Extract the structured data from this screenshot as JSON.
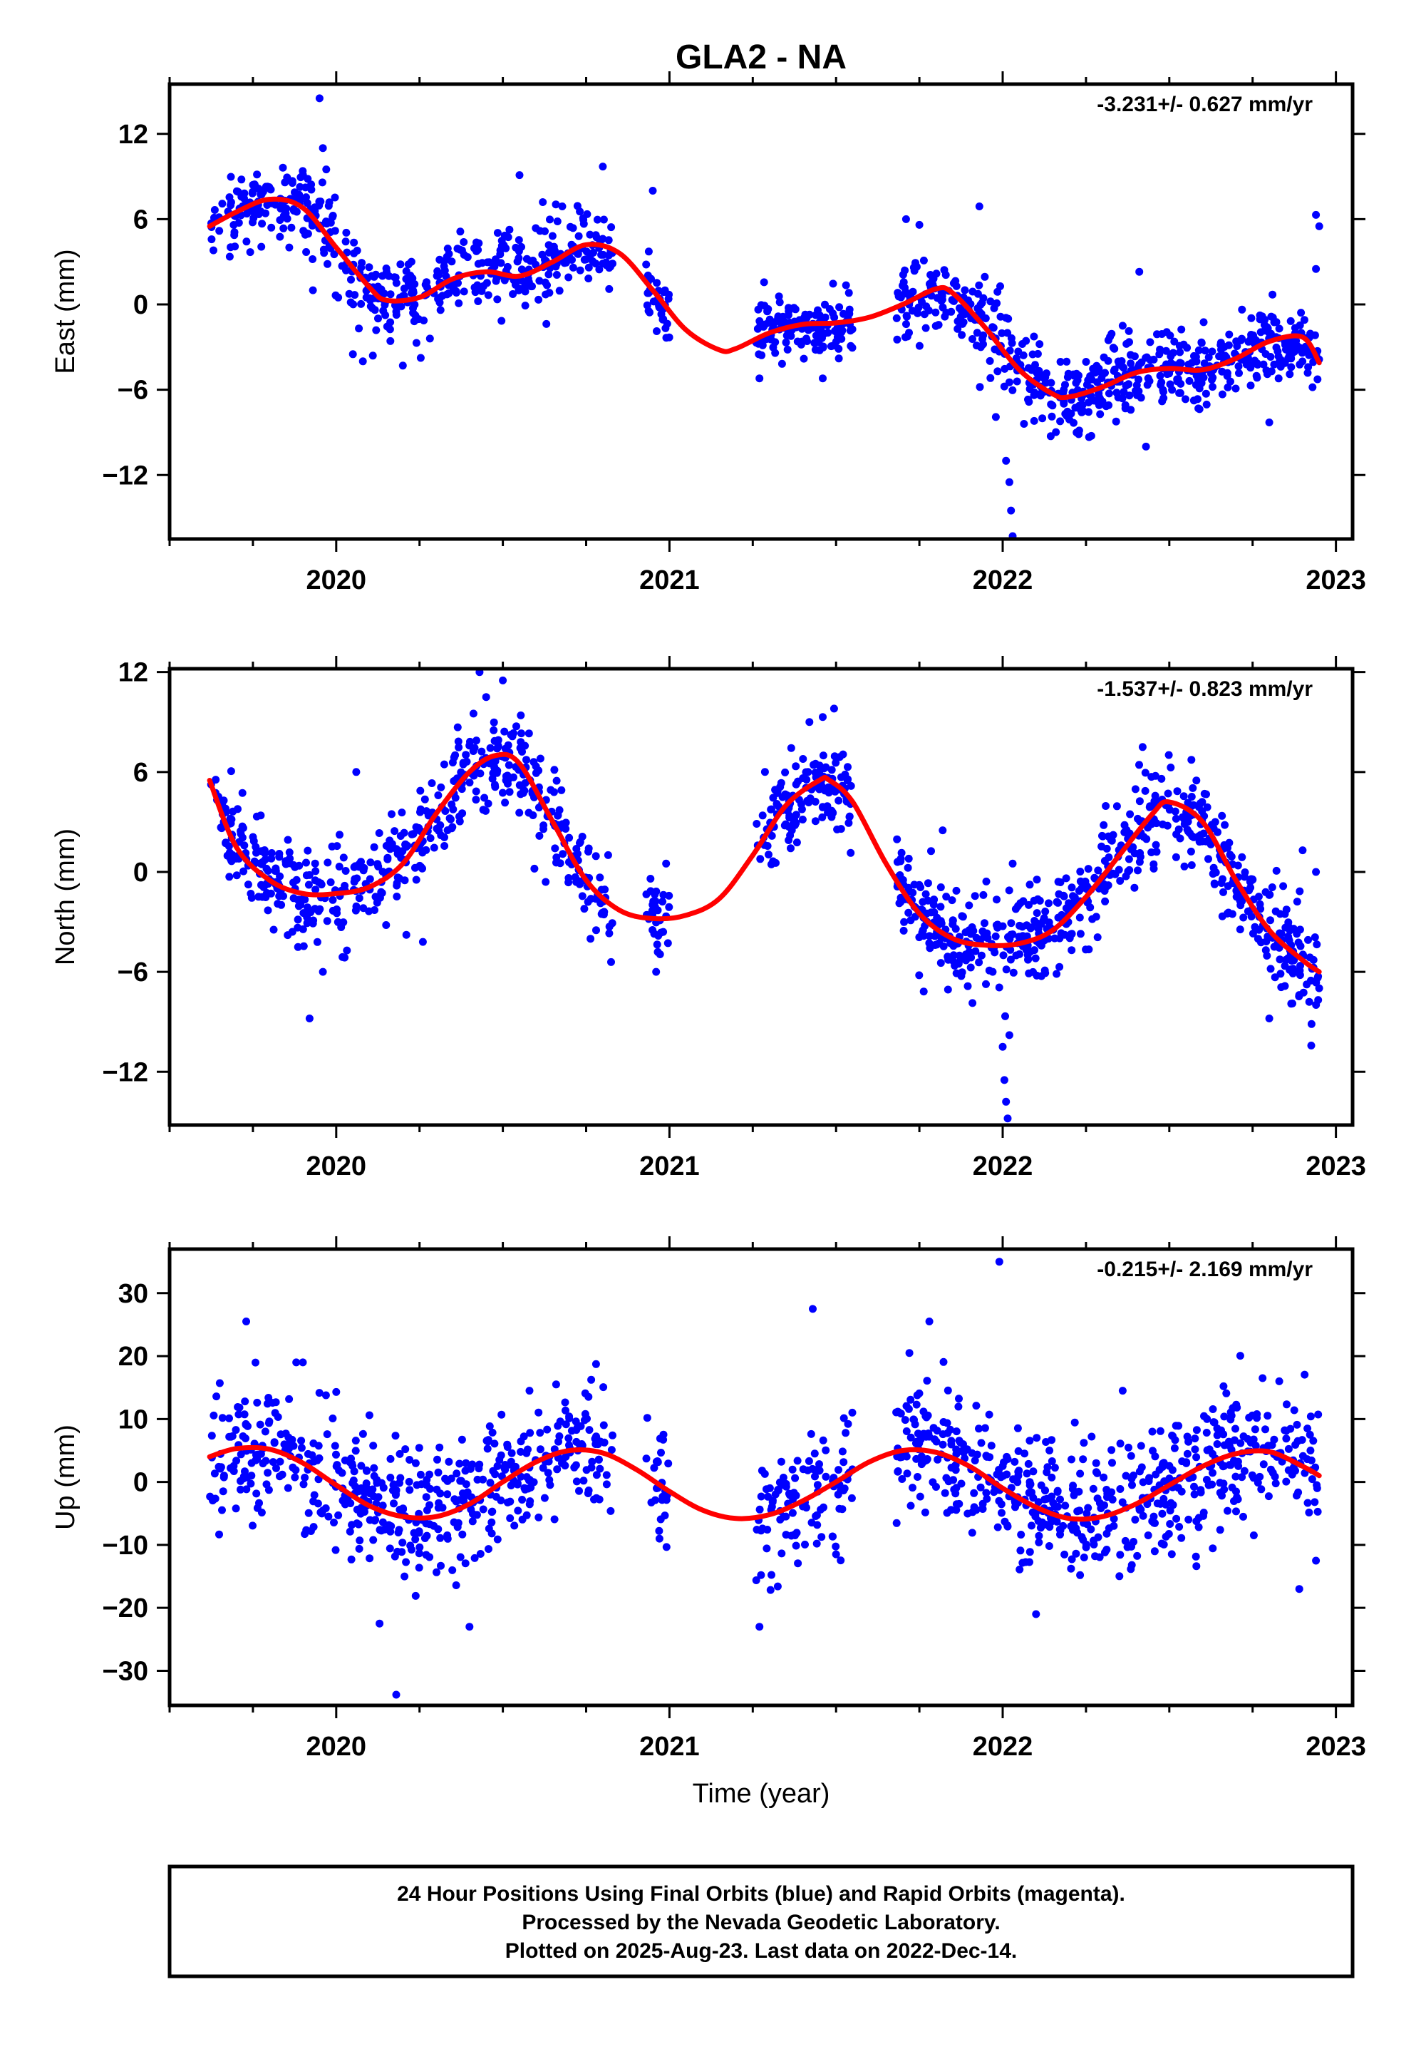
{
  "title": "GLA2 - NA",
  "xlabel": "Time (year)",
  "footer": {
    "line1": "24 Hour Positions Using Final Orbits (blue) and Rapid Orbits (magenta).",
    "line2": "Processed by the Nevada Geodetic Laboratory.",
    "line3": "Plotted on 2025-Aug-23. Last data on 2022-Dec-14."
  },
  "colors": {
    "points": "#0000ff",
    "fit": "#ff0000",
    "frame": "#000000"
  },
  "chart_data": [
    {
      "type": "scatter",
      "ylabel": "East (mm)",
      "annotation": "-3.231+/- 0.627 mm/yr",
      "xlim": [
        2019.5,
        2023.05
      ],
      "ylim": [
        -16.5,
        15.5
      ],
      "xticks": [
        2020,
        2021,
        2022,
        2023
      ],
      "yticks": [
        12,
        6,
        0,
        -6,
        -12
      ],
      "ytick_labels": [
        "12",
        "6",
        "0",
        "−6",
        "−12"
      ],
      "series": [
        {
          "kind": "fit",
          "x": [
            2019.62,
            2019.7,
            2019.8,
            2019.9,
            2020.0,
            2020.1,
            2020.15,
            2020.25,
            2020.35,
            2020.45,
            2020.55,
            2020.65,
            2020.75,
            2020.85,
            2020.95,
            2021.05,
            2021.15,
            2021.2,
            2021.3,
            2021.4,
            2021.5,
            2021.6,
            2021.7,
            2021.8,
            2021.85,
            2021.95,
            2022.05,
            2022.15,
            2022.2,
            2022.3,
            2022.4,
            2022.5,
            2022.6,
            2022.7,
            2022.8,
            2022.9,
            2022.95
          ],
          "y": [
            5.5,
            6.5,
            7.4,
            6.8,
            4.0,
            1.2,
            0.3,
            0.5,
            1.8,
            2.3,
            2.0,
            3.0,
            4.2,
            3.6,
            1.0,
            -1.8,
            -3.2,
            -3.1,
            -2.0,
            -1.4,
            -1.3,
            -0.9,
            0.0,
            1.1,
            0.8,
            -1.7,
            -4.6,
            -6.3,
            -6.5,
            -5.8,
            -4.8,
            -4.5,
            -4.6,
            -3.8,
            -2.6,
            -2.3,
            -4.1
          ]
        },
        {
          "kind": "observations",
          "segments": [
            {
              "x0": 2019.62,
              "x1": 2019.94,
              "n": 130,
              "sd": 1.3,
              "spikes": [
                [
                  2019.96,
                  11.0
                ],
                [
                  2019.95,
                  14.5
                ],
                [
                  2019.97,
                  9.5
                ],
                [
                  2019.93,
                  1.0
                ]
              ]
            },
            {
              "x0": 2019.94,
              "x1": 2020.12,
              "n": 70,
              "sd": 1.6,
              "spikes": [
                [
                  2020.05,
                  -3.5
                ],
                [
                  2020.08,
                  -4.0
                ],
                [
                  2020.11,
                  -3.6
                ]
              ]
            },
            {
              "x0": 2020.12,
              "x1": 2020.68,
              "n": 220,
              "sd": 1.4,
              "spikes": [
                [
                  2020.2,
                  -4.3
                ],
                [
                  2020.55,
                  9.1
                ],
                [
                  2020.62,
                  7.2
                ]
              ]
            },
            {
              "x0": 2020.68,
              "x1": 2020.83,
              "n": 60,
              "sd": 1.3,
              "spikes": [
                [
                  2020.8,
                  9.7
                ]
              ]
            },
            {
              "x0": 2020.93,
              "x1": 2021.0,
              "n": 35,
              "sd": 1.2,
              "spikes": [
                [
                  2020.95,
                  8.0
                ]
              ]
            },
            {
              "x0": 2021.26,
              "x1": 2021.55,
              "n": 140,
              "sd": 1.0,
              "spikes": [
                [
                  2021.27,
                  -5.2
                ],
                [
                  2021.46,
                  -5.2
                ]
              ]
            },
            {
              "x0": 2021.68,
              "x1": 2021.92,
              "n": 100,
              "sd": 1.3,
              "spikes": [
                [
                  2021.71,
                  6.0
                ],
                [
                  2021.75,
                  5.6
                ],
                [
                  2021.93,
                  6.9
                ]
              ]
            },
            {
              "x0": 2021.92,
              "x1": 2022.04,
              "n": 50,
              "sd": 2.0,
              "spikes": [
                [
                  2022.02,
                  -12.5
                ],
                [
                  2022.025,
                  -14.5
                ],
                [
                  2022.03,
                  -16.3
                ],
                [
                  2022.01,
                  -11.0
                ]
              ]
            },
            {
              "x0": 2022.04,
              "x1": 2022.55,
              "n": 240,
              "sd": 1.3,
              "spikes": [
                [
                  2022.41,
                  2.3
                ],
                [
                  2022.43,
                  -10.0
                ],
                [
                  2022.36,
                  -1.5
                ]
              ]
            },
            {
              "x0": 2022.55,
              "x1": 2022.95,
              "n": 190,
              "sd": 1.3,
              "spikes": [
                [
                  2022.94,
                  6.3
                ],
                [
                  2022.95,
                  5.5
                ],
                [
                  2022.94,
                  2.5
                ],
                [
                  2022.8,
                  -8.3
                ]
              ]
            }
          ]
        }
      ]
    },
    {
      "type": "scatter",
      "ylabel": "North (mm)",
      "annotation": "-1.537+/- 0.823 mm/yr",
      "xlim": [
        2019.5,
        2023.05
      ],
      "ylim": [
        -15.2,
        12.2
      ],
      "xticks": [
        2020,
        2021,
        2022,
        2023
      ],
      "yticks": [
        12,
        6,
        0,
        -6,
        -12
      ],
      "ytick_labels": [
        "12",
        "6",
        "0",
        "−6",
        "−12"
      ],
      "series": [
        {
          "kind": "fit",
          "x": [
            2019.62,
            2019.7,
            2019.8,
            2019.9,
            2020.0,
            2020.1,
            2020.2,
            2020.3,
            2020.4,
            2020.48,
            2020.55,
            2020.65,
            2020.75,
            2020.85,
            2020.95,
            2021.05,
            2021.15,
            2021.25,
            2021.35,
            2021.45,
            2021.48,
            2021.55,
            2021.65,
            2021.75,
            2021.85,
            2021.95,
            2022.05,
            2022.15,
            2022.25,
            2022.35,
            2022.45,
            2022.5,
            2022.6,
            2022.7,
            2022.8,
            2022.9,
            2022.95
          ],
          "y": [
            5.5,
            1.5,
            -0.5,
            -1.3,
            -1.3,
            -0.9,
            0.5,
            3.5,
            6.0,
            7.0,
            6.5,
            3.0,
            -0.5,
            -2.3,
            -2.8,
            -2.6,
            -1.6,
            1.0,
            4.0,
            5.5,
            5.5,
            4.2,
            0.5,
            -2.5,
            -4.0,
            -4.4,
            -4.3,
            -3.5,
            -1.5,
            1.0,
            3.5,
            4.2,
            3.0,
            -0.5,
            -3.5,
            -5.3,
            -6.0
          ]
        },
        {
          "kind": "observations",
          "segments": [
            {
              "x0": 2019.62,
              "x1": 2019.95,
              "n": 150,
              "sd": 1.5,
              "spikes": [
                [
                  2019.92,
                  -8.8
                ],
                [
                  2019.96,
                  -6.0
                ]
              ]
            },
            {
              "x0": 2019.95,
              "x1": 2020.3,
              "n": 130,
              "sd": 1.5,
              "spikes": [
                [
                  2020.06,
                  6.0
                ],
                [
                  2020.26,
                  -4.2
                ]
              ]
            },
            {
              "x0": 2020.3,
              "x1": 2020.6,
              "n": 140,
              "sd": 1.6,
              "spikes": [
                [
                  2020.43,
                  12.0
                ],
                [
                  2020.5,
                  11.5
                ],
                [
                  2020.45,
                  10.5
                ]
              ]
            },
            {
              "x0": 2020.6,
              "x1": 2020.83,
              "n": 90,
              "sd": 1.4,
              "spikes": [
                [
                  2020.78,
                  -3.5
                ]
              ]
            },
            {
              "x0": 2020.93,
              "x1": 2021.0,
              "n": 30,
              "sd": 1.2,
              "spikes": [
                [
                  2020.96,
                  -6.0
                ],
                [
                  2020.99,
                  0.5
                ]
              ]
            },
            {
              "x0": 2021.26,
              "x1": 2021.55,
              "n": 140,
              "sd": 1.3,
              "spikes": [
                [
                  2021.46,
                  9.3
                ],
                [
                  2021.42,
                  9.0
                ]
              ]
            },
            {
              "x0": 2021.68,
              "x1": 2021.98,
              "n": 140,
              "sd": 1.5,
              "spikes": [
                [
                  2021.82,
                  2.5
                ],
                [
                  2021.97,
                  -6.0
                ]
              ]
            },
            {
              "x0": 2021.98,
              "x1": 2022.05,
              "n": 25,
              "sd": 1.5,
              "spikes": [
                [
                  2022.0,
                  -10.5
                ],
                [
                  2022.005,
                  -12.5
                ],
                [
                  2022.01,
                  -13.8
                ],
                [
                  2022.015,
                  -14.8
                ],
                [
                  2022.02,
                  -9.8
                ]
              ]
            },
            {
              "x0": 2022.05,
              "x1": 2022.6,
              "n": 250,
              "sd": 1.4,
              "spikes": [
                [
                  2022.03,
                  0.5
                ],
                [
                  2022.42,
                  7.5
                ]
              ]
            },
            {
              "x0": 2022.6,
              "x1": 2022.95,
              "n": 170,
              "sd": 1.4,
              "spikes": [
                [
                  2022.8,
                  -8.8
                ],
                [
                  2022.92,
                  -7.8
                ],
                [
                  2022.94,
                  0.0
                ],
                [
                  2022.9,
                  1.3
                ]
              ]
            }
          ]
        }
      ]
    },
    {
      "type": "scatter",
      "ylabel": "Up (mm)",
      "annotation": "-0.215+/- 2.169 mm/yr",
      "xlim": [
        2019.5,
        2023.05
      ],
      "ylim": [
        -35.5,
        37.0
      ],
      "xticks": [
        2020,
        2021,
        2022,
        2023
      ],
      "yticks": [
        30,
        20,
        10,
        0,
        -10,
        -20,
        -30
      ],
      "ytick_labels": [
        "30",
        "20",
        "10",
        "0",
        "−10",
        "−20",
        "−30"
      ],
      "series": [
        {
          "kind": "fit",
          "x": [
            2019.62,
            2019.7,
            2019.8,
            2019.9,
            2020.0,
            2020.1,
            2020.2,
            2020.3,
            2020.4,
            2020.5,
            2020.6,
            2020.7,
            2020.8,
            2020.9,
            2021.0,
            2021.1,
            2021.2,
            2021.3,
            2021.4,
            2021.5,
            2021.6,
            2021.7,
            2021.8,
            2021.9,
            2022.0,
            2022.1,
            2022.2,
            2022.3,
            2022.4,
            2022.5,
            2022.6,
            2022.7,
            2022.8,
            2022.9,
            2022.95
          ],
          "y": [
            4.0,
            5.3,
            5.2,
            3.0,
            -0.5,
            -3.8,
            -5.5,
            -5.5,
            -3.5,
            0.0,
            3.2,
            5.0,
            4.6,
            2.0,
            -1.5,
            -4.5,
            -5.8,
            -5.2,
            -3.0,
            0.0,
            3.2,
            5.0,
            4.7,
            2.5,
            -1.0,
            -4.0,
            -5.8,
            -5.5,
            -3.5,
            -0.5,
            2.5,
            4.5,
            4.8,
            2.5,
            1.0
          ]
        },
        {
          "kind": "observations",
          "segments": [
            {
              "x0": 2019.62,
              "x1": 2019.95,
              "n": 130,
              "sd": 5.0,
              "spikes": [
                [
                  2019.73,
                  25.5
                ],
                [
                  2019.88,
                  19.0
                ],
                [
                  2019.9,
                  19.0
                ]
              ]
            },
            {
              "x0": 2019.95,
              "x1": 2020.4,
              "n": 200,
              "sd": 5.5,
              "spikes": [
                [
                  2020.18,
                  -33.8
                ],
                [
                  2020.4,
                  -23.0
                ],
                [
                  2020.13,
                  -22.5
                ],
                [
                  2020.0,
                  14.3
                ]
              ]
            },
            {
              "x0": 2020.4,
              "x1": 2020.83,
              "n": 170,
              "sd": 5.0,
              "spikes": [
                [
                  2020.66,
                  15.5
                ],
                [
                  2020.58,
                  14.5
                ]
              ]
            },
            {
              "x0": 2020.93,
              "x1": 2021.0,
              "n": 25,
              "sd": 4.0,
              "spikes": [
                [
                  2020.97,
                  -9.0
                ]
              ]
            },
            {
              "x0": 2021.26,
              "x1": 2021.55,
              "n": 110,
              "sd": 5.0,
              "spikes": [
                [
                  2021.27,
                  -23.0
                ],
                [
                  2021.43,
                  27.5
                ],
                [
                  2021.5,
                  -11.5
                ]
              ]
            },
            {
              "x0": 2021.68,
              "x1": 2022.05,
              "n": 170,
              "sd": 5.0,
              "spikes": [
                [
                  2021.99,
                  35.0
                ],
                [
                  2021.78,
                  25.5
                ],
                [
                  2021.72,
                  20.5
                ]
              ]
            },
            {
              "x0": 2022.05,
              "x1": 2022.5,
              "n": 200,
              "sd": 5.0,
              "spikes": [
                [
                  2022.1,
                  -21.0
                ],
                [
                  2022.36,
                  14.5
                ]
              ]
            },
            {
              "x0": 2022.5,
              "x1": 2022.95,
              "n": 190,
              "sd": 5.0,
              "spikes": [
                [
                  2022.83,
                  16.0
                ],
                [
                  2022.78,
                  16.5
                ],
                [
                  2022.89,
                  -17.0
                ],
                [
                  2022.94,
                  -12.5
                ]
              ]
            }
          ]
        }
      ]
    }
  ]
}
